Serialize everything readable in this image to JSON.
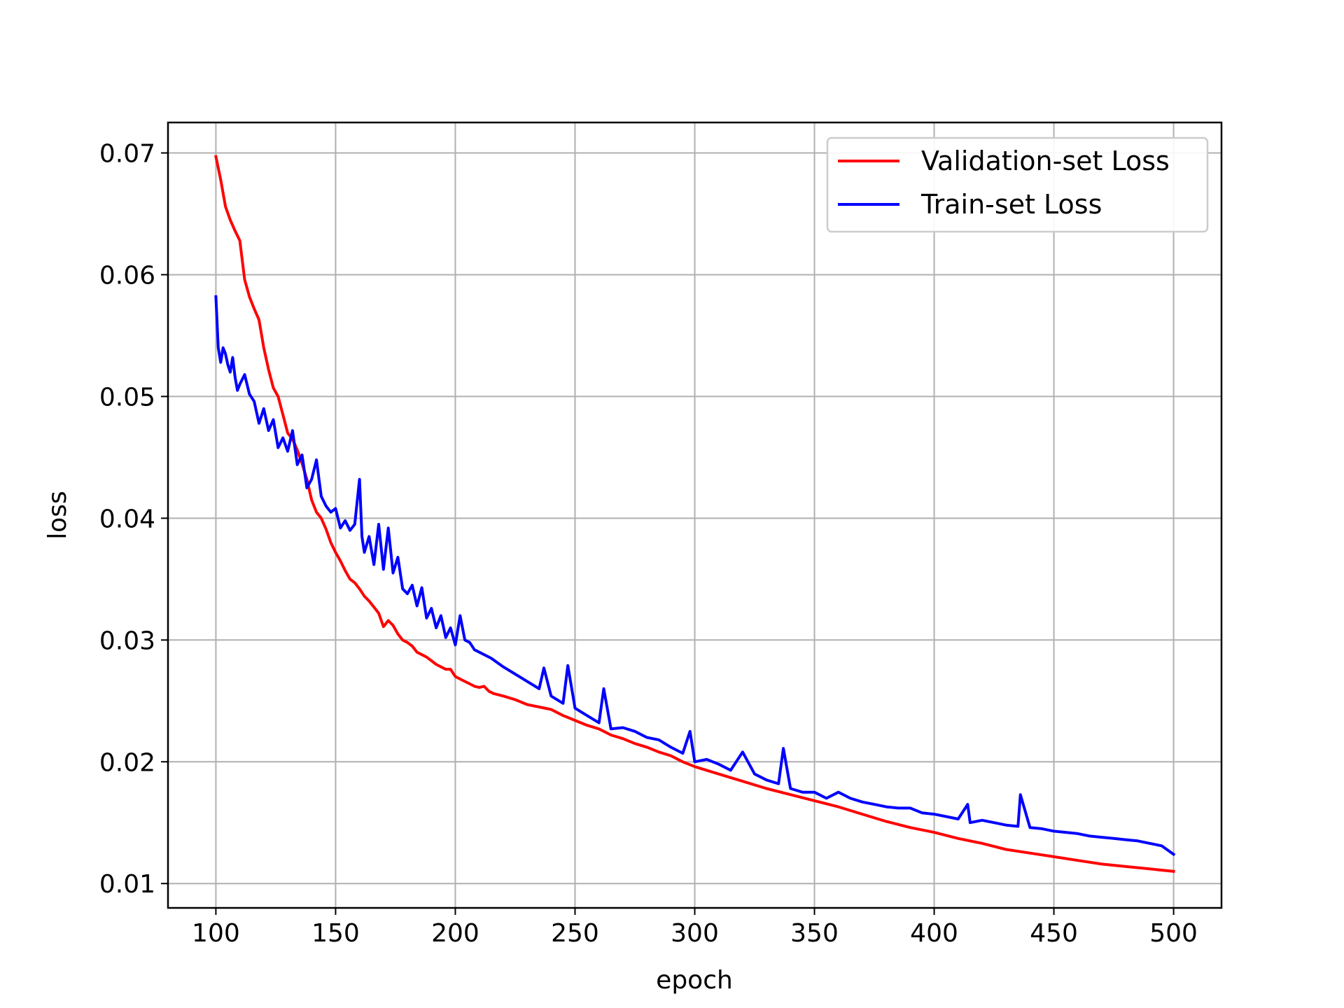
{
  "chart_data": {
    "type": "line",
    "title": "",
    "xlabel": "epoch",
    "ylabel": "loss",
    "xlim": [
      80,
      520
    ],
    "ylim": [
      0.008,
      0.0725
    ],
    "xticks": [
      100,
      150,
      200,
      250,
      300,
      350,
      400,
      450,
      500
    ],
    "xtick_labels": [
      "100",
      "150",
      "200",
      "250",
      "300",
      "350",
      "400",
      "450",
      "500"
    ],
    "yticks": [
      0.01,
      0.02,
      0.03,
      0.04,
      0.05,
      0.06,
      0.07
    ],
    "ytick_labels": [
      "0.01",
      "0.02",
      "0.03",
      "0.04",
      "0.05",
      "0.06",
      "0.07"
    ],
    "grid": true,
    "legend_position": "top-right",
    "x_range": [
      100,
      500
    ],
    "series": [
      {
        "name": "Validation-set Loss",
        "color": "#ff0000",
        "x": [
          100,
          102,
          104,
          106,
          108,
          110,
          112,
          114,
          116,
          118,
          120,
          122,
          124,
          126,
          128,
          130,
          132,
          134,
          136,
          138,
          140,
          142,
          144,
          146,
          148,
          150,
          152,
          154,
          156,
          158,
          160,
          162,
          164,
          166,
          168,
          170,
          172,
          174,
          176,
          178,
          180,
          182,
          184,
          186,
          188,
          190,
          192,
          194,
          196,
          198,
          200,
          202,
          204,
          206,
          208,
          210,
          212,
          214,
          216,
          218,
          220,
          225,
          230,
          235,
          240,
          245,
          250,
          255,
          260,
          265,
          270,
          275,
          280,
          285,
          290,
          295,
          300,
          310,
          320,
          330,
          340,
          350,
          360,
          370,
          380,
          390,
          400,
          410,
          420,
          430,
          440,
          450,
          460,
          470,
          480,
          490,
          500
        ],
        "values": [
          0.0697,
          0.0678,
          0.0656,
          0.0645,
          0.0636,
          0.0628,
          0.0596,
          0.0582,
          0.0572,
          0.0563,
          0.054,
          0.0522,
          0.0507,
          0.05,
          0.0485,
          0.047,
          0.0465,
          0.0456,
          0.0445,
          0.0432,
          0.0415,
          0.0405,
          0.04,
          0.0391,
          0.038,
          0.0372,
          0.0365,
          0.0357,
          0.035,
          0.0347,
          0.0342,
          0.0336,
          0.0332,
          0.0327,
          0.0322,
          0.0311,
          0.0316,
          0.0312,
          0.0305,
          0.03,
          0.0298,
          0.0295,
          0.029,
          0.0288,
          0.0286,
          0.0283,
          0.028,
          0.0278,
          0.0276,
          0.0276,
          0.027,
          0.0268,
          0.0266,
          0.0264,
          0.0262,
          0.0261,
          0.0262,
          0.0258,
          0.0256,
          0.0255,
          0.0254,
          0.0251,
          0.0247,
          0.0245,
          0.0243,
          0.0238,
          0.0234,
          0.023,
          0.0227,
          0.0222,
          0.0219,
          0.0215,
          0.0212,
          0.0208,
          0.0205,
          0.02,
          0.0196,
          0.019,
          0.0184,
          0.0178,
          0.0173,
          0.0168,
          0.0163,
          0.0157,
          0.0151,
          0.0146,
          0.0142,
          0.0137,
          0.0133,
          0.0128,
          0.0125,
          0.0122,
          0.0119,
          0.0116,
          0.0114,
          0.0112,
          0.011
        ]
      },
      {
        "name": "Train-set Loss",
        "color": "#0000ff",
        "x": [
          100,
          101,
          102,
          103,
          104,
          105,
          106,
          107,
          108,
          109,
          110,
          112,
          114,
          116,
          118,
          120,
          122,
          124,
          126,
          128,
          130,
          132,
          134,
          136,
          138,
          140,
          142,
          144,
          146,
          148,
          150,
          152,
          154,
          156,
          158,
          160,
          161,
          162,
          164,
          166,
          168,
          170,
          172,
          174,
          176,
          178,
          180,
          182,
          184,
          186,
          188,
          190,
          192,
          194,
          196,
          198,
          200,
          202,
          204,
          206,
          208,
          210,
          215,
          220,
          225,
          230,
          235,
          237,
          240,
          245,
          247,
          250,
          255,
          260,
          262,
          265,
          270,
          275,
          280,
          285,
          290,
          295,
          298,
          300,
          305,
          310,
          315,
          320,
          325,
          330,
          335,
          337,
          340,
          345,
          350,
          355,
          360,
          365,
          370,
          375,
          380,
          385,
          390,
          395,
          400,
          405,
          410,
          414,
          415,
          420,
          425,
          430,
          435,
          436,
          440,
          445,
          450,
          455,
          460,
          465,
          470,
          475,
          480,
          485,
          490,
          495,
          500
        ],
        "values": [
          0.0582,
          0.054,
          0.0528,
          0.054,
          0.0535,
          0.0526,
          0.052,
          0.0532,
          0.0516,
          0.0505,
          0.051,
          0.0518,
          0.0502,
          0.0496,
          0.0478,
          0.049,
          0.0472,
          0.0481,
          0.0458,
          0.0466,
          0.0455,
          0.0472,
          0.0444,
          0.0452,
          0.0425,
          0.0432,
          0.0448,
          0.0418,
          0.041,
          0.0405,
          0.0408,
          0.0392,
          0.0398,
          0.039,
          0.0395,
          0.0432,
          0.0385,
          0.0372,
          0.0385,
          0.0362,
          0.0395,
          0.0358,
          0.0392,
          0.0355,
          0.0368,
          0.0342,
          0.0338,
          0.0345,
          0.0328,
          0.0343,
          0.0318,
          0.0326,
          0.031,
          0.032,
          0.0302,
          0.031,
          0.0296,
          0.032,
          0.03,
          0.0298,
          0.0292,
          0.029,
          0.0285,
          0.0278,
          0.0272,
          0.0266,
          0.026,
          0.0277,
          0.0254,
          0.0248,
          0.0279,
          0.0244,
          0.0238,
          0.0232,
          0.026,
          0.0227,
          0.0228,
          0.0225,
          0.022,
          0.0218,
          0.0212,
          0.0207,
          0.0225,
          0.02,
          0.0202,
          0.0198,
          0.0193,
          0.0208,
          0.019,
          0.0185,
          0.0182,
          0.0211,
          0.0178,
          0.0175,
          0.0175,
          0.017,
          0.0175,
          0.017,
          0.0167,
          0.0165,
          0.0163,
          0.0162,
          0.0162,
          0.0158,
          0.0157,
          0.0155,
          0.0153,
          0.0165,
          0.015,
          0.0152,
          0.015,
          0.0148,
          0.0147,
          0.0173,
          0.0146,
          0.0145,
          0.0143,
          0.0142,
          0.0141,
          0.0139,
          0.0138,
          0.0137,
          0.0136,
          0.0135,
          0.0133,
          0.0131,
          0.0124
        ]
      }
    ]
  }
}
